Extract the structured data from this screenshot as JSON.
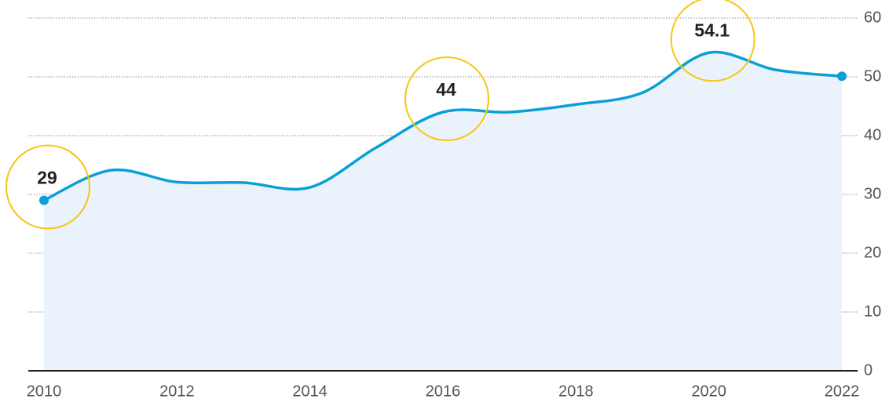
{
  "chart_data": {
    "type": "area",
    "x": [
      2010,
      2011,
      2012,
      2013,
      2014,
      2015,
      2016,
      2017,
      2018,
      2019,
      2020,
      2021,
      2022
    ],
    "series": [
      {
        "color": "#0a9fd8",
        "fill": "#eaf2fb",
        "values": [
          29,
          34.1,
          32.1,
          32,
          31.2,
          38,
          44,
          44,
          45.3,
          47.3,
          54.1,
          51.2,
          50.1
        ]
      }
    ],
    "highlight_indices": [
      0,
      6,
      10
    ],
    "highlight_color": "#f2c80f",
    "xlim": [
      2010,
      2022
    ],
    "xticks": [
      2010,
      2012,
      2014,
      2016,
      2018,
      2020,
      2022
    ],
    "ylim": [
      0,
      60
    ],
    "yticks": [
      0,
      10,
      20,
      30,
      40,
      50,
      60
    ],
    "grid": true
  }
}
